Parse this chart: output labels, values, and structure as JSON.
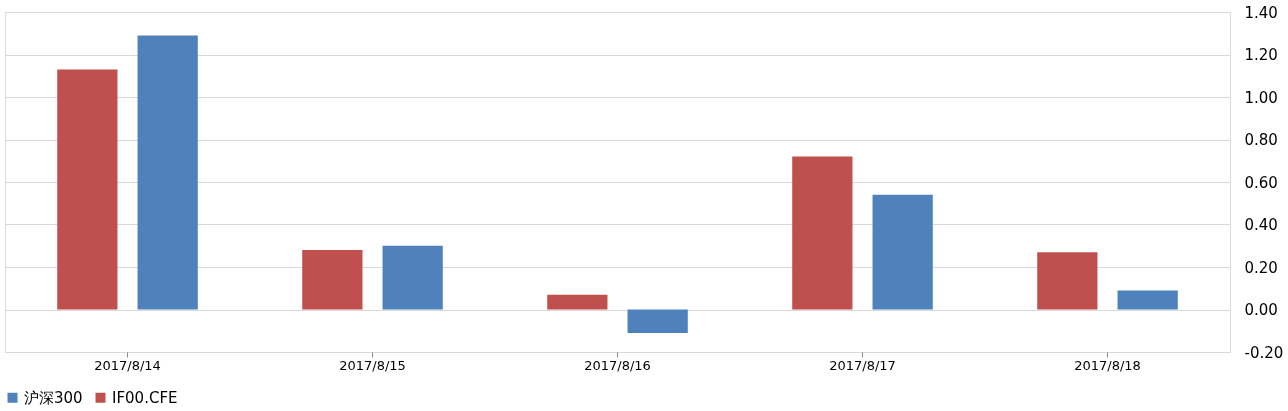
{
  "chart_data": {
    "type": "bar",
    "categories": [
      "2017/8/14",
      "2017/8/15",
      "2017/8/16",
      "2017/8/17",
      "2017/8/18"
    ],
    "series": [
      {
        "name": "IF00.CFE",
        "color": "#c0504d",
        "values": [
          1.13,
          0.28,
          0.07,
          0.72,
          0.27
        ]
      },
      {
        "name": "沪深300",
        "color": "#4f81bd",
        "values": [
          1.29,
          0.3,
          -0.11,
          0.54,
          0.09
        ]
      }
    ],
    "ylim": [
      -0.2,
      1.4
    ],
    "yticks": [
      {
        "value": -0.2,
        "label": "-0.20"
      },
      {
        "value": 0,
        "label": "0.00"
      },
      {
        "value": 0.2,
        "label": "0.20"
      },
      {
        "value": 0.4,
        "label": "0.40"
      },
      {
        "value": 0.6,
        "label": "0.60"
      },
      {
        "value": 0.8,
        "label": "0.80"
      },
      {
        "value": 1.0,
        "label": "1.00"
      },
      {
        "value": 1.2,
        "label": "1.20"
      },
      {
        "value": 1.4,
        "label": "1.40"
      }
    ],
    "grid": "y",
    "legend": "bottom"
  }
}
